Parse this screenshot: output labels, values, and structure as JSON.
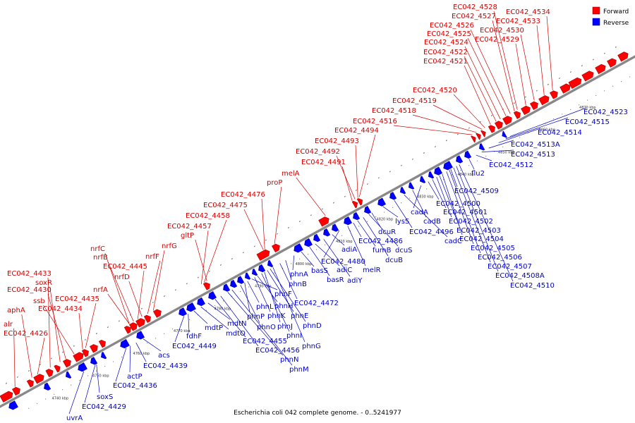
{
  "caption": "Escherichia coli 042 complete genome. - 0..5241977",
  "legend": {
    "forward": {
      "label": "Forward",
      "color": "#ff0000"
    },
    "reverse": {
      "label": "Reverse",
      "color": "#0000ff"
    }
  },
  "colors": {
    "forward_label": "#d40000",
    "reverse_label": "#0000cc",
    "axis": "#888888"
  },
  "ticks": [
    "4740 kbp",
    "4750 kbp",
    "4760 kbp",
    "4770 kbp",
    "4780 kbp",
    "4790 kbp",
    "4800 kbp",
    "4810 kbp",
    "4820 kbp",
    "4830 kbp",
    "4840 kbp",
    "4850 kbp",
    "4860 kbp",
    "4870 kbp"
  ],
  "forward_labels": [
    "alr",
    "EC042_4426",
    "aphA",
    "EC042_4433",
    "EC042_4430",
    "soxR",
    "ssb",
    "EC042_4435",
    "EC042_4434",
    "nrfC",
    "nrfB",
    "nrfA",
    "EC042_4445",
    "nrfD",
    "nrfF",
    "nrfG",
    "gltP",
    "EC042_4457",
    "EC042_4458",
    "EC042_4475",
    "EC042_4476",
    "proP",
    "melA",
    "EC042_4491",
    "EC042_4492",
    "EC042_4493",
    "EC042_4494",
    "EC042_4516",
    "EC042_4518",
    "EC042_4519",
    "EC042_4520",
    "EC042_4521",
    "EC042_4522",
    "EC042_4524",
    "EC042_4525",
    "EC042_4526",
    "EC042_4527",
    "EC042_4528",
    "EC042_4529",
    "EC042_4530",
    "EC042_4533",
    "EC042_4534"
  ],
  "reverse_labels": [
    "uvrA",
    "EC042_4429",
    "soxS",
    "EC042_4436",
    "actP",
    "EC042_4439",
    "acs",
    "EC042_4449",
    "fdhF",
    "mdtP",
    "mdtO",
    "mdtN",
    "EC042_4455",
    "EC042_4456",
    "phnN",
    "phnM",
    "phnO",
    "phnP",
    "phnL",
    "phnF",
    "phnK",
    "phnH",
    "phnI",
    "phnJ",
    "phnE",
    "phnD",
    "phnG",
    "EC042_4472",
    "phnB",
    "phnA",
    "basS",
    "basR",
    "adiC",
    "adiY",
    "adiA",
    "EC042_4480",
    "melR",
    "EC042_4486",
    "fumB",
    "dcuB",
    "dcuS",
    "dcuR",
    "lysS",
    "EC042_4496",
    "cadC",
    "cadB",
    "cadA",
    "EC042_4500",
    "EC042_4501",
    "EC042_4502",
    "EC042_4503",
    "EC042_4504",
    "EC042_4505",
    "EC042_4506",
    "EC042_4507",
    "EC042_4508A",
    "EC042_4510",
    "EC042_4509",
    "flu2",
    "EC042_4512",
    "EC042_4513",
    "EC042_4513A",
    "EC042_4514",
    "EC042_4515",
    "EC042_4523"
  ]
}
